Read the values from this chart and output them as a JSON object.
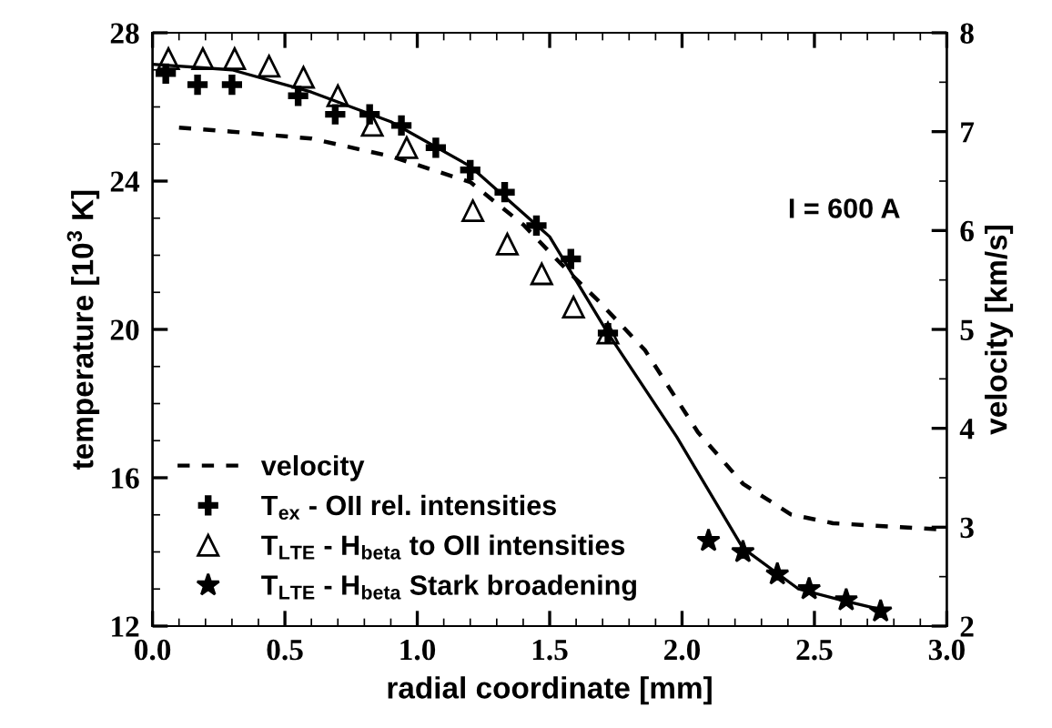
{
  "chart_data": {
    "type": "line",
    "xlabel": "radial coordinate [mm]",
    "ylabel": "temperature [10$^{3}$ K]",
    "y2label": "velocity [km/s]",
    "xlim": [
      0.0,
      3.0
    ],
    "xticks": [
      {
        "value": 0,
        "label": "0.0"
      },
      {
        "value": 0.5,
        "label": "0.5"
      },
      {
        "value": 1,
        "label": "1.0"
      },
      {
        "value": 1.5,
        "label": "1.5"
      },
      {
        "value": 2,
        "label": "2.0"
      },
      {
        "value": 2.5,
        "label": "2.5"
      },
      {
        "value": 3,
        "label": "3.0"
      }
    ],
    "ylim": [
      12,
      28
    ],
    "yticks": [
      12,
      16,
      20,
      24,
      28
    ],
    "y2lim": [
      2,
      8
    ],
    "y2ticks": [
      2,
      3,
      4,
      5,
      6,
      7,
      8
    ],
    "legend": "bottom left",
    "grid": false,
    "annotations": [
      "I = 600 A"
    ],
    "series": [
      {
        "color": "#000000",
        "line_style": "solid",
        "marker": "none",
        "x": [
          0.0,
          0.3,
          0.6,
          0.9,
          1.2,
          1.5,
          1.72,
          1.98,
          2.23,
          2.44,
          2.6,
          2.75
        ],
        "values": [
          27.15,
          27.0,
          26.4,
          25.6,
          24.4,
          22.5,
          19.9,
          17.1,
          14.1,
          13.0,
          12.7,
          12.45
        ]
      },
      {
        "axis": "y2",
        "name": "velocity",
        "color": "#000000",
        "line_style": "dashed",
        "marker": "none",
        "x": [
          0.1,
          0.3,
          0.6,
          0.9,
          1.2,
          1.4,
          1.58,
          1.68,
          1.86,
          2.06,
          2.23,
          2.41,
          2.57,
          2.96
        ],
        "values": [
          7.04,
          7.0,
          6.93,
          6.75,
          6.49,
          6.06,
          5.56,
          5.3,
          4.79,
          3.96,
          3.44,
          3.13,
          3.04,
          2.98
        ]
      },
      {
        "type": "scatter",
        "name": "T$_{ex}$ - OII rel. intensities",
        "color": "#000000",
        "marker": "cross",
        "x": [
          0.05,
          0.17,
          0.3,
          0.55,
          0.69,
          0.82,
          0.94,
          1.07,
          1.2,
          1.33,
          1.45,
          1.58,
          1.72
        ],
        "values": [
          26.9,
          26.6,
          26.6,
          26.3,
          25.8,
          25.8,
          25.5,
          24.9,
          24.3,
          23.7,
          22.8,
          21.9,
          19.9
        ]
      },
      {
        "type": "scatter",
        "name": "T$_{LTE}$ - H$_{beta}$ to OII intensities",
        "color": "#000000",
        "marker": "triangle",
        "x": [
          0.06,
          0.19,
          0.31,
          0.44,
          0.57,
          0.7,
          0.83,
          0.96,
          1.21,
          1.34,
          1.47,
          1.59,
          1.72
        ],
        "values": [
          27.3,
          27.3,
          27.3,
          27.1,
          26.8,
          26.3,
          25.5,
          24.9,
          23.2,
          22.3,
          21.5,
          20.6,
          19.9
        ]
      },
      {
        "type": "scatter",
        "name": "T$_{LTE}$ - H$_{beta}$ Stark broadening",
        "color": "#000000",
        "marker": "star",
        "x": [
          2.1,
          2.23,
          2.36,
          2.48,
          2.62,
          2.75
        ],
        "values": [
          14.3,
          14.0,
          13.4,
          13.0,
          12.7,
          12.4
        ]
      }
    ]
  }
}
